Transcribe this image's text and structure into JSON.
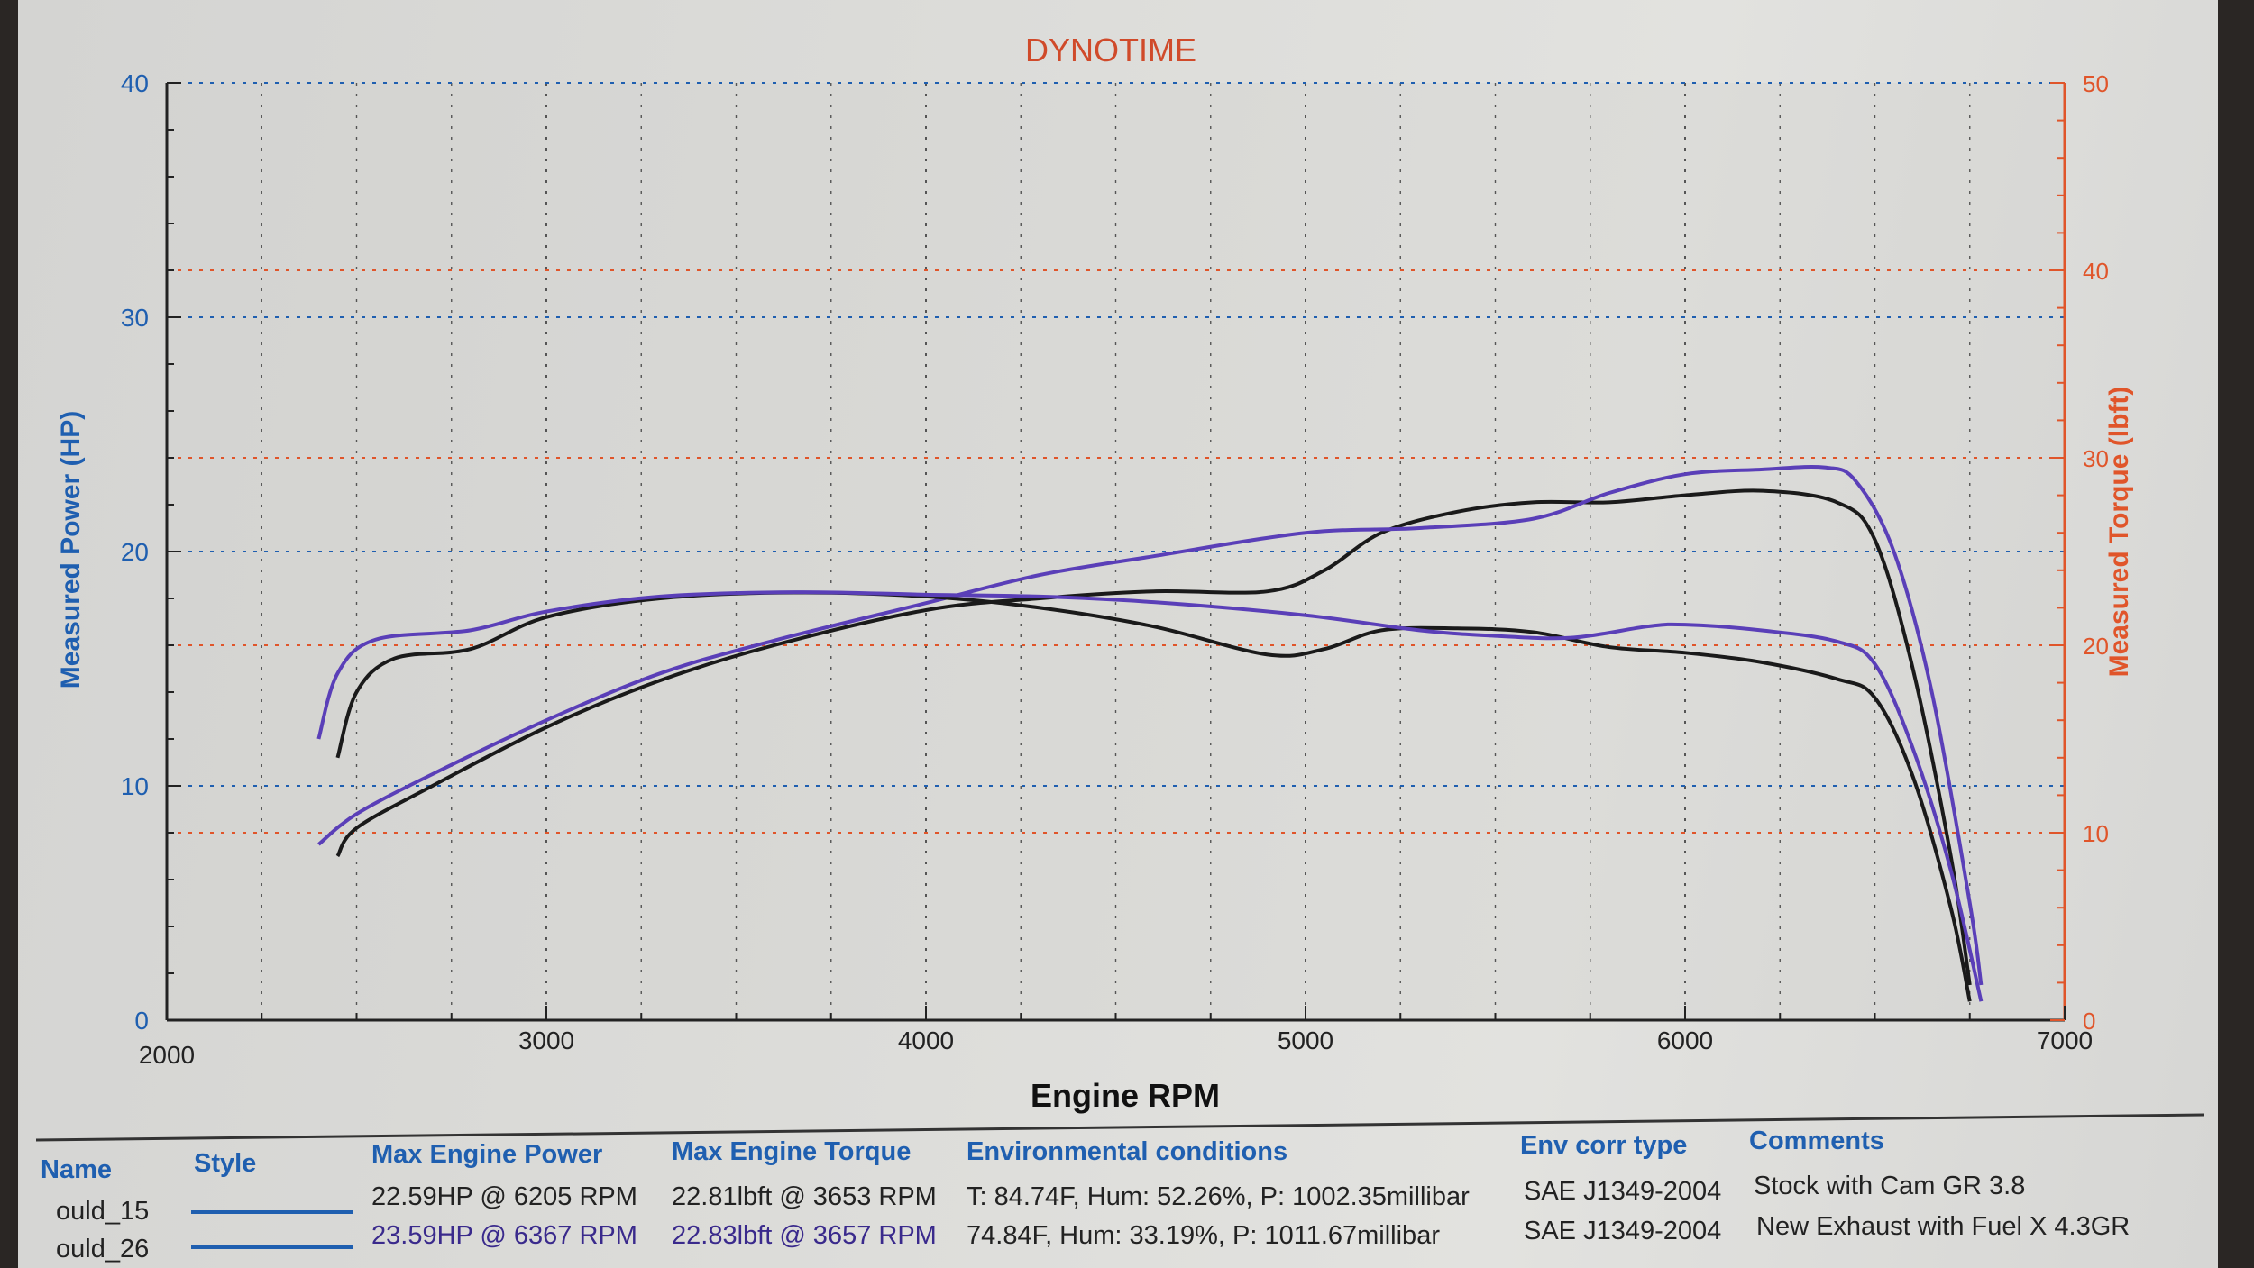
{
  "chart_data": {
    "type": "line",
    "title": "DYNOTIME",
    "xlabel": "Engine RPM",
    "ylabel_left": "Measured Power (HP)",
    "ylabel_right": "Measured Torque (lbft)",
    "xlim": [
      2000,
      7000
    ],
    "ylim_left": [
      0,
      40
    ],
    "ylim_right": [
      0,
      50
    ],
    "x_ticks": [
      "2000",
      "3000",
      "4000",
      "5000",
      "6000",
      "7000"
    ],
    "y_left_ticks": [
      "0",
      "10",
      "20",
      "30",
      "40"
    ],
    "y_right_ticks": [
      "0",
      "10",
      "20",
      "30",
      "40",
      "50"
    ],
    "grid": true,
    "colors": {
      "run_15": "#1a1a1a",
      "run_26": "#5a3fb8",
      "title": "#d04a2a",
      "left_axis": "#1f5fb0",
      "right_axis": "#e0552a"
    },
    "series": [
      {
        "name": "ould_15",
        "quantity": "power",
        "axis": "left",
        "x": [
          2450,
          2500,
          2700,
          3000,
          3300,
          3600,
          4000,
          4300,
          4600,
          4900,
          5050,
          5200,
          5400,
          5600,
          5800,
          6000,
          6205,
          6400,
          6500,
          6600,
          6700,
          6750
        ],
        "y": [
          7,
          8.2,
          10,
          12.5,
          14.5,
          16,
          17.5,
          18,
          18.3,
          18.3,
          19.2,
          20.8,
          21.7,
          22.1,
          22.1,
          22.4,
          22.59,
          22.1,
          20.5,
          15,
          7,
          1.5
        ]
      },
      {
        "name": "ould_26",
        "quantity": "power",
        "axis": "left",
        "x": [
          2400,
          2500,
          2700,
          3000,
          3300,
          3600,
          4000,
          4300,
          4600,
          5000,
          5300,
          5600,
          5800,
          6000,
          6200,
          6367,
          6450,
          6550,
          6650,
          6750,
          6780
        ],
        "y": [
          7.5,
          8.8,
          10.5,
          12.8,
          14.8,
          16.2,
          17.8,
          19,
          19.8,
          20.8,
          21,
          21.4,
          22.5,
          23.3,
          23.5,
          23.59,
          23,
          20,
          14,
          5,
          1.5
        ]
      },
      {
        "name": "ould_15",
        "quantity": "torque",
        "axis": "right",
        "x": [
          2450,
          2500,
          2600,
          2800,
          3000,
          3300,
          3653,
          4000,
          4300,
          4600,
          4900,
          5050,
          5200,
          5400,
          5600,
          5800,
          6000,
          6200,
          6400,
          6500,
          6600,
          6700,
          6750
        ],
        "y": [
          14,
          17.5,
          19.3,
          19.8,
          21.5,
          22.5,
          22.81,
          22.6,
          22,
          21,
          19.5,
          19.8,
          20.8,
          20.9,
          20.7,
          19.9,
          19.6,
          19.1,
          18.2,
          17.2,
          13,
          6,
          1
        ]
      },
      {
        "name": "ould_26",
        "quantity": "torque",
        "axis": "right",
        "x": [
          2400,
          2450,
          2550,
          2800,
          3000,
          3300,
          3657,
          4000,
          4300,
          4600,
          5000,
          5300,
          5500,
          5700,
          5900,
          6000,
          6200,
          6400,
          6500,
          6600,
          6700,
          6780
        ],
        "y": [
          15,
          18.5,
          20.3,
          20.8,
          21.8,
          22.6,
          22.83,
          22.7,
          22.6,
          22.3,
          21.6,
          20.8,
          20.5,
          20.4,
          21,
          21.1,
          20.8,
          20.2,
          19,
          14.5,
          8,
          1
        ]
      }
    ]
  },
  "table": {
    "headers": {
      "name": "Name",
      "style": "Style",
      "power": "Max Engine Power",
      "torque": "Max Engine Torque",
      "env": "Environmental conditions",
      "corr": "Env corr type",
      "comments": "Comments"
    },
    "rows": [
      {
        "name": "ould_15",
        "power": "22.59HP @ 6205 RPM",
        "torque": "22.81lbft @ 3653 RPM",
        "env": "T: 84.74F, Hum: 52.26%, P: 1002.35millibar",
        "corr": "SAE J1349-2004",
        "comments": "Stock with Cam GR 3.8"
      },
      {
        "name": "ould_26",
        "power": "23.59HP @ 6367 RPM",
        "torque": "22.83lbft @ 3657 RPM",
        "env": "74.84F, Hum: 33.19%, P: 1011.67millibar",
        "corr": "SAE J1349-2004",
        "comments": "New Exhaust with Fuel X  4.3GR"
      }
    ]
  }
}
